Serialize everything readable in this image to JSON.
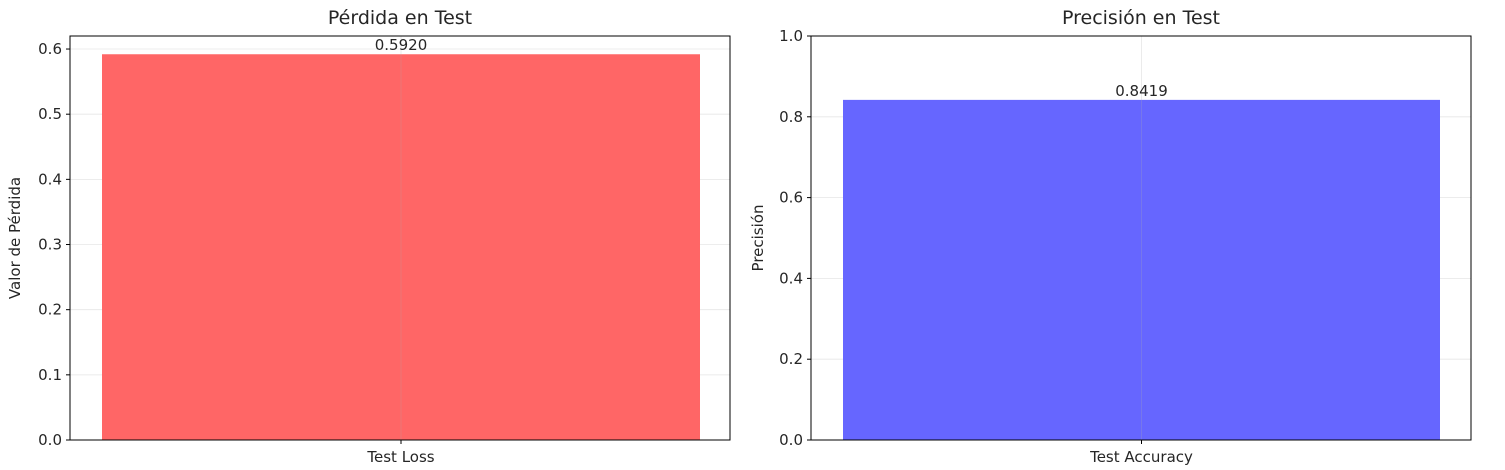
{
  "chart_data": [
    {
      "type": "bar",
      "title": "Pérdida en Test",
      "xlabel": "",
      "ylabel": "Valor de Pérdida",
      "categories": [
        "Test Loss"
      ],
      "values": [
        0.592
      ],
      "data_labels": [
        "0.5920"
      ],
      "ylim": [
        0,
        0.62
      ],
      "yticks": [
        0.0,
        0.1,
        0.2,
        0.3,
        0.4,
        0.5,
        0.6
      ],
      "ytick_labels": [
        "0.0",
        "0.1",
        "0.2",
        "0.3",
        "0.4",
        "0.5",
        "0.6"
      ],
      "color": "#ff6666",
      "grid": true
    },
    {
      "type": "bar",
      "title": "Precisión en Test",
      "xlabel": "",
      "ylabel": "Precisión",
      "categories": [
        "Test Accuracy"
      ],
      "values": [
        0.8419
      ],
      "data_labels": [
        "0.8419"
      ],
      "ylim": [
        0,
        1.0
      ],
      "yticks": [
        0.0,
        0.2,
        0.4,
        0.6,
        0.8,
        1.0
      ],
      "ytick_labels": [
        "0.0",
        "0.2",
        "0.4",
        "0.6",
        "0.8",
        "1.0"
      ],
      "color": "#6666ff",
      "grid": true
    }
  ]
}
